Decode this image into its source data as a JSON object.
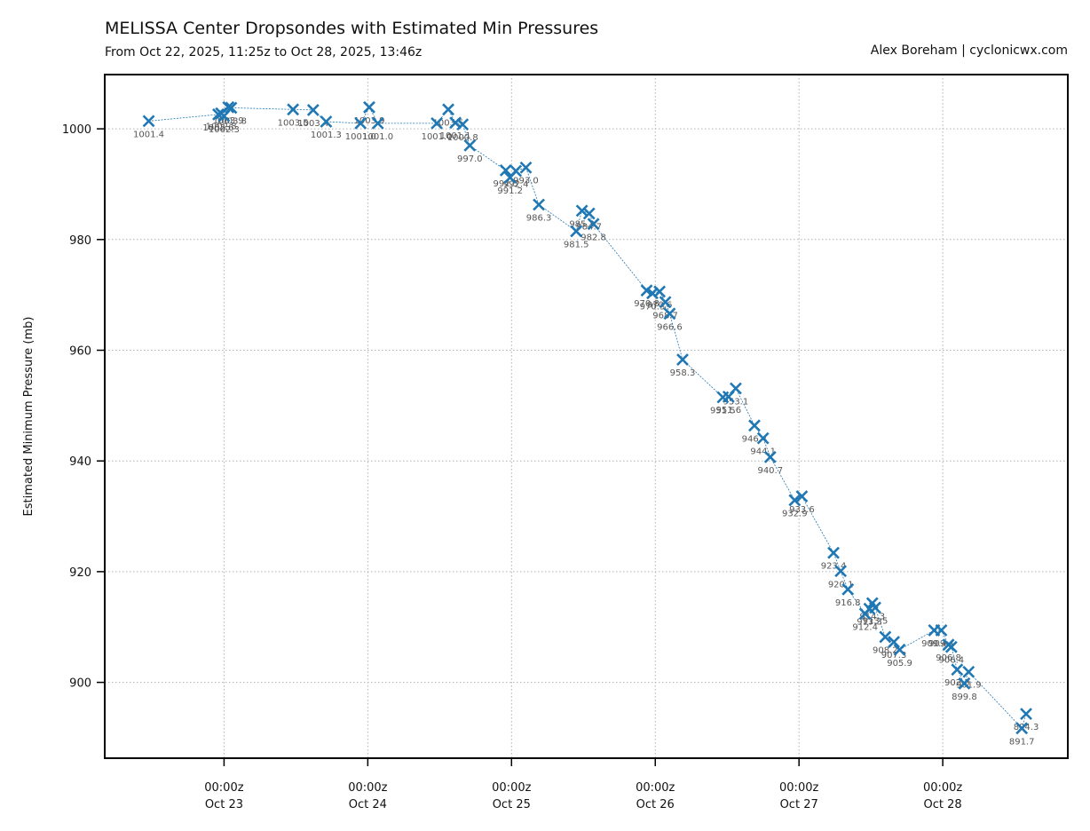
{
  "header": {
    "title": "MELISSA Center Dropsondes with Estimated Min Pressures",
    "subtitle": "From Oct 22, 2025, 11:25z to Oct 28, 2025, 13:46z",
    "credit": "Alex Boreham | cyclonicwx.com"
  },
  "colors": {
    "series": "#1f77b4",
    "grid": "#b0b0b0",
    "label": "#555555"
  },
  "chart_data": {
    "type": "scatter",
    "title": "MELISSA Center Dropsondes with Estimated Min Pressures",
    "subtitle": "From Oct 22, 2025, 11:25z to Oct 28, 2025, 13:46z",
    "xlabel": "",
    "ylabel": "Estimated Minimum Pressure (mb)",
    "x_unit": "days since Oct 23, 2025 00:00z",
    "xlim": [
      -0.83,
      5.87
    ],
    "ylim": [
      886.3,
      1009.8
    ],
    "grid": true,
    "marker": "x",
    "connected": true,
    "xticks": [
      {
        "value": 0,
        "line1": "00:00z",
        "line2": "Oct 23"
      },
      {
        "value": 1,
        "line1": "00:00z",
        "line2": "Oct 24"
      },
      {
        "value": 2,
        "line1": "00:00z",
        "line2": "Oct 25"
      },
      {
        "value": 3,
        "line1": "00:00z",
        "line2": "Oct 26"
      },
      {
        "value": 4,
        "line1": "00:00z",
        "line2": "Oct 27"
      },
      {
        "value": 5,
        "line1": "00:00z",
        "line2": "Oct 28"
      }
    ],
    "yticks": [
      900,
      920,
      940,
      960,
      980,
      1000
    ],
    "points": [
      {
        "x": -0.524,
        "y": 1001.4,
        "label": "1001.4"
      },
      {
        "x": -0.04,
        "y": 1002.6,
        "label": "1002.6"
      },
      {
        "x": -0.02,
        "y": 1002.8,
        "label": "1002.8"
      },
      {
        "x": 0.0,
        "y": 1002.3,
        "label": "1002.3"
      },
      {
        "x": 0.03,
        "y": 1003.9,
        "label": "1003.9"
      },
      {
        "x": 0.05,
        "y": 1003.8,
        "label": "1003.8"
      },
      {
        "x": 0.48,
        "y": 1003.5,
        "label": "1003.5"
      },
      {
        "x": 0.62,
        "y": 1003.4,
        "label": "1003.4"
      },
      {
        "x": 0.71,
        "y": 1001.3,
        "label": "1001.3"
      },
      {
        "x": 0.95,
        "y": 1001.0,
        "label": "1001.0"
      },
      {
        "x": 1.01,
        "y": 1003.9,
        "label": "1003.9"
      },
      {
        "x": 1.07,
        "y": 1001.0,
        "label": "1001.0"
      },
      {
        "x": 1.48,
        "y": 1001.0,
        "label": "1001.0"
      },
      {
        "x": 1.56,
        "y": 1003.5,
        "label": "1003.5"
      },
      {
        "x": 1.61,
        "y": 1001.1,
        "label": "1001.1"
      },
      {
        "x": 1.66,
        "y": 1000.8,
        "label": "1000.8"
      },
      {
        "x": 1.71,
        "y": 997.0,
        "label": "997.0"
      },
      {
        "x": 1.96,
        "y": 992.5,
        "label": "992.5"
      },
      {
        "x": 1.99,
        "y": 991.2,
        "label": "991.2"
      },
      {
        "x": 2.03,
        "y": 992.4,
        "label": "992.4"
      },
      {
        "x": 2.1,
        "y": 993.0,
        "label": "993.0"
      },
      {
        "x": 2.19,
        "y": 986.3,
        "label": "986.3"
      },
      {
        "x": 2.45,
        "y": 981.5,
        "label": "981.5"
      },
      {
        "x": 2.49,
        "y": 985.2,
        "label": "985.2"
      },
      {
        "x": 2.54,
        "y": 984.7,
        "label": "984.7"
      },
      {
        "x": 2.57,
        "y": 982.8,
        "label": "982.8"
      },
      {
        "x": 2.94,
        "y": 970.8,
        "label": "970.8"
      },
      {
        "x": 2.98,
        "y": 970.3,
        "label": "970.3"
      },
      {
        "x": 3.03,
        "y": 970.6,
        "label": "970.6"
      },
      {
        "x": 3.07,
        "y": 968.7,
        "label": "968.7"
      },
      {
        "x": 3.1,
        "y": 966.6,
        "label": "966.6"
      },
      {
        "x": 3.19,
        "y": 958.3,
        "label": "958.3"
      },
      {
        "x": 3.47,
        "y": 951.5,
        "label": "951.5"
      },
      {
        "x": 3.51,
        "y": 951.6,
        "label": "951.6"
      },
      {
        "x": 3.56,
        "y": 953.1,
        "label": "953.1"
      },
      {
        "x": 3.69,
        "y": 946.4,
        "label": "946.4"
      },
      {
        "x": 3.75,
        "y": 944.1,
        "label": "944.1"
      },
      {
        "x": 3.8,
        "y": 940.7,
        "label": "940.7"
      },
      {
        "x": 3.97,
        "y": 932.9,
        "label": "932.9"
      },
      {
        "x": 4.02,
        "y": 933.6,
        "label": "933.6"
      },
      {
        "x": 4.24,
        "y": 923.4,
        "label": "923.4"
      },
      {
        "x": 4.29,
        "y": 920.1,
        "label": "920.1"
      },
      {
        "x": 4.34,
        "y": 916.8,
        "label": "916.8"
      },
      {
        "x": 4.46,
        "y": 912.4,
        "label": "912.4"
      },
      {
        "x": 4.49,
        "y": 913.3,
        "label": "913.3"
      },
      {
        "x": 4.51,
        "y": 914.3,
        "label": "914.3"
      },
      {
        "x": 4.53,
        "y": 913.5,
        "label": "913.5"
      },
      {
        "x": 4.6,
        "y": 908.2,
        "label": "908.2"
      },
      {
        "x": 4.66,
        "y": 907.3,
        "label": "907.3"
      },
      {
        "x": 4.7,
        "y": 905.9,
        "label": "905.9"
      },
      {
        "x": 4.94,
        "y": 909.4,
        "label": "909.4"
      },
      {
        "x": 4.99,
        "y": 909.4,
        "label": "909.4"
      },
      {
        "x": 5.04,
        "y": 906.8,
        "label": "906.8"
      },
      {
        "x": 5.06,
        "y": 906.4,
        "label": "906.4"
      },
      {
        "x": 5.1,
        "y": 902.3,
        "label": "902.3"
      },
      {
        "x": 5.15,
        "y": 899.8,
        "label": "899.8"
      },
      {
        "x": 5.18,
        "y": 901.9,
        "label": "901.9"
      },
      {
        "x": 5.55,
        "y": 891.7,
        "label": "891.7"
      },
      {
        "x": 5.58,
        "y": 894.3,
        "label": "894.3"
      }
    ]
  }
}
